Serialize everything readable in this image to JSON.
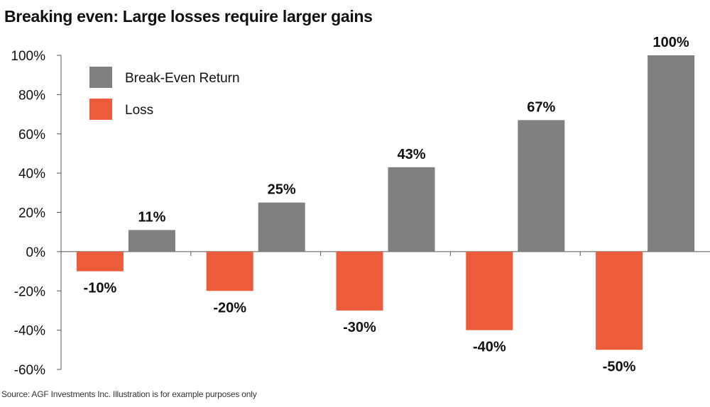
{
  "title": "Breaking even: Large losses require larger gains",
  "source": "Source: AGF Investments Inc. Illustration is for example purposes only",
  "chart_data": {
    "type": "bar",
    "categories": [
      "",
      "",
      "",
      "",
      ""
    ],
    "series": [
      {
        "name": "Loss",
        "color": "#EC5B3A",
        "values": [
          -10,
          -20,
          -30,
          -40,
          -50
        ],
        "labels": [
          "-10%",
          "-20%",
          "-30%",
          "-40%",
          "-50%"
        ]
      },
      {
        "name": "Break-Even Return",
        "color": "#808080",
        "values": [
          11,
          25,
          43,
          67,
          100
        ],
        "labels": [
          "11%",
          "25%",
          "43%",
          "67%",
          "100%"
        ]
      }
    ],
    "legend_order": [
      "Break-Even Return",
      "Loss"
    ],
    "legend_position": "top-left",
    "ylim": [
      -60,
      100
    ],
    "yticks": [
      100,
      80,
      60,
      40,
      20,
      0,
      -20,
      -40,
      -60
    ],
    "ytick_labels": [
      "100%",
      "80%",
      "60%",
      "40%",
      "20%",
      "0%",
      "-20%",
      "-40%",
      "-60%"
    ],
    "grid": false,
    "xlabel": "",
    "ylabel": ""
  }
}
